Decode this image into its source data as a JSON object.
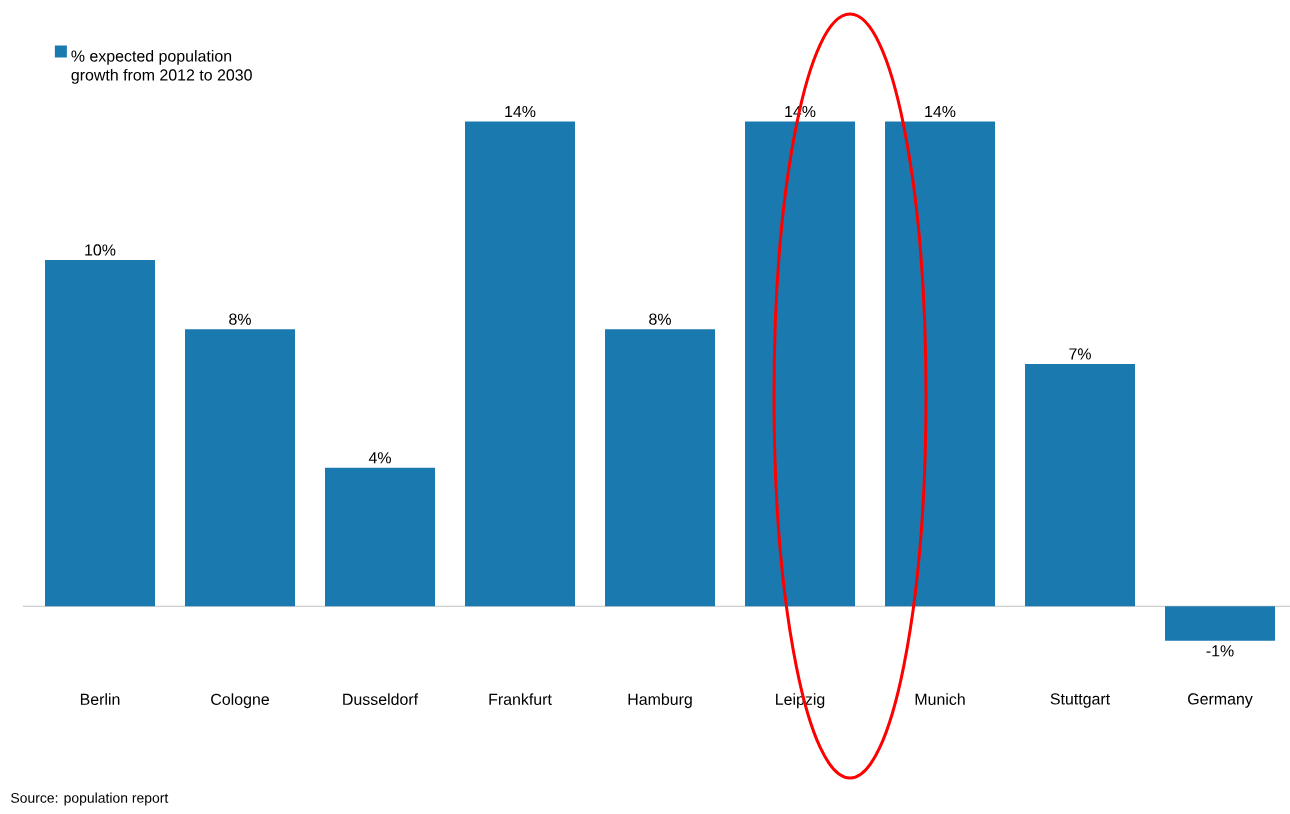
{
  "chart_data": {
    "type": "bar",
    "categories": [
      "Berlin",
      "Cologne",
      "Dusseldorf",
      "Frankfurt",
      "Hamburg",
      "Leipzig",
      "Munich",
      "Stuttgart",
      "Germany"
    ],
    "series": [
      {
        "name": "% expected population growth from 2012 to 2030",
        "color": "#1a7ab0",
        "values": [
          10,
          8,
          4,
          14,
          8,
          14,
          14,
          7,
          -1
        ],
        "value_labels": [
          "10%",
          "8%",
          "4%",
          "14%",
          "8%",
          "14%",
          "14%",
          "7%",
          "-1%"
        ]
      }
    ],
    "legend": "top left",
    "annotations": [
      "Source: population report"
    ]
  }
}
